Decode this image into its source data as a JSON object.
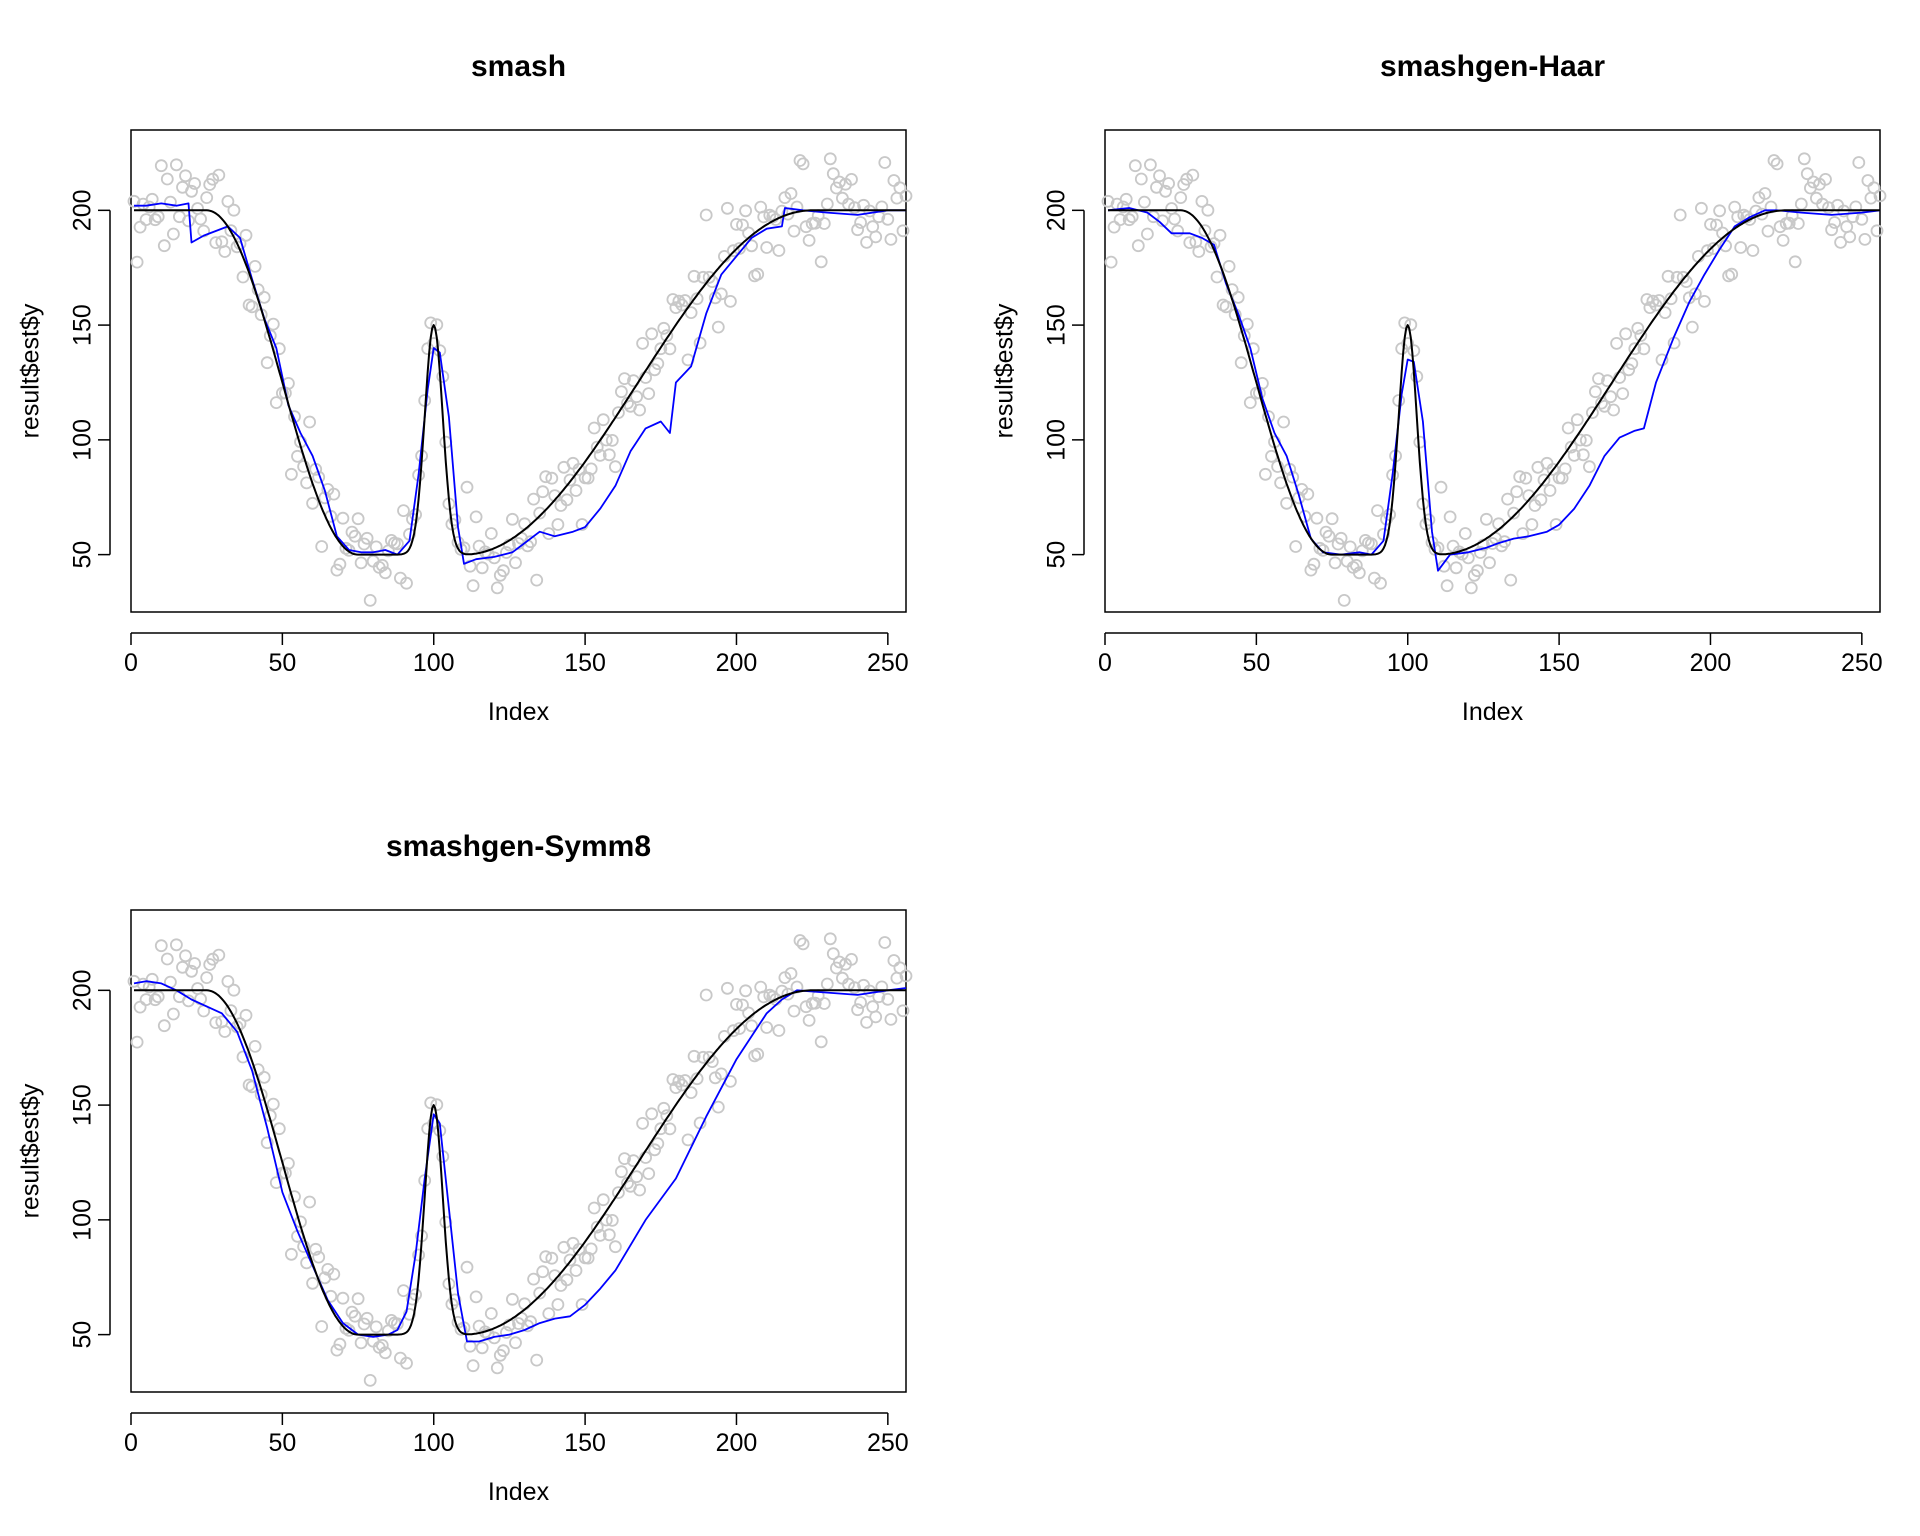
{
  "colors": {
    "background": "#ffffff",
    "observed": "#c8c8c8",
    "estimate": "#0000ff",
    "truth": "#000000",
    "axis": "#000000"
  },
  "chart_data": [
    {
      "type": "scatter",
      "title": "smash",
      "xlabel": "Index",
      "ylabel": "result$est$y",
      "xlim": [
        0,
        256
      ],
      "ylim": [
        25,
        235
      ],
      "xticks": [
        0,
        50,
        100,
        150,
        200,
        250
      ],
      "yticks": [
        50,
        100,
        150,
        200
      ],
      "grid": false,
      "estimate_points": [
        [
          1,
          202
        ],
        [
          5,
          202
        ],
        [
          10,
          203
        ],
        [
          15,
          202
        ],
        [
          19,
          203
        ],
        [
          20,
          186
        ],
        [
          24,
          189
        ],
        [
          28,
          191
        ],
        [
          32,
          193
        ],
        [
          36,
          188
        ],
        [
          40,
          170
        ],
        [
          44,
          153
        ],
        [
          48,
          140
        ],
        [
          52,
          115
        ],
        [
          56,
          103
        ],
        [
          60,
          93
        ],
        [
          64,
          78
        ],
        [
          68,
          58
        ],
        [
          72,
          52
        ],
        [
          76,
          51
        ],
        [
          80,
          51
        ],
        [
          84,
          52
        ],
        [
          88,
          50
        ],
        [
          92,
          56
        ],
        [
          95,
          85
        ],
        [
          98,
          122
        ],
        [
          100,
          140
        ],
        [
          102,
          138
        ],
        [
          105,
          110
        ],
        [
          108,
          62
        ],
        [
          110,
          46
        ],
        [
          114,
          48
        ],
        [
          120,
          49
        ],
        [
          126,
          51
        ],
        [
          130,
          55
        ],
        [
          135,
          60
        ],
        [
          140,
          58
        ],
        [
          146,
          60
        ],
        [
          150,
          62
        ],
        [
          155,
          70
        ],
        [
          160,
          80
        ],
        [
          165,
          95
        ],
        [
          170,
          105
        ],
        [
          175,
          108
        ],
        [
          178,
          103
        ],
        [
          180,
          125
        ],
        [
          185,
          132
        ],
        [
          190,
          155
        ],
        [
          195,
          172
        ],
        [
          200,
          180
        ],
        [
          205,
          188
        ],
        [
          210,
          192
        ],
        [
          215,
          193
        ],
        [
          216,
          201
        ],
        [
          222,
          200
        ],
        [
          230,
          199
        ],
        [
          240,
          198
        ],
        [
          250,
          200
        ],
        [
          256,
          200
        ]
      ]
    },
    {
      "type": "scatter",
      "title": "smashgen-Haar",
      "xlabel": "Index",
      "ylabel": "result$est$y",
      "xlim": [
        0,
        256
      ],
      "ylim": [
        25,
        235
      ],
      "xticks": [
        0,
        50,
        100,
        150,
        200,
        250
      ],
      "yticks": [
        50,
        100,
        150,
        200
      ],
      "grid": false,
      "estimate_points": [
        [
          1,
          200
        ],
        [
          8,
          201
        ],
        [
          14,
          199
        ],
        [
          18,
          195
        ],
        [
          22,
          190
        ],
        [
          28,
          190
        ],
        [
          32,
          188
        ],
        [
          36,
          185
        ],
        [
          40,
          168
        ],
        [
          44,
          155
        ],
        [
          48,
          140
        ],
        [
          52,
          118
        ],
        [
          56,
          103
        ],
        [
          60,
          93
        ],
        [
          64,
          76
        ],
        [
          68,
          57
        ],
        [
          72,
          51
        ],
        [
          78,
          50
        ],
        [
          84,
          51
        ],
        [
          88,
          50
        ],
        [
          92,
          56
        ],
        [
          95,
          85
        ],
        [
          98,
          120
        ],
        [
          100,
          135
        ],
        [
          102,
          134
        ],
        [
          105,
          108
        ],
        [
          108,
          60
        ],
        [
          110,
          43
        ],
        [
          114,
          50
        ],
        [
          120,
          51
        ],
        [
          126,
          53
        ],
        [
          130,
          55
        ],
        [
          135,
          57
        ],
        [
          140,
          58
        ],
        [
          146,
          60
        ],
        [
          150,
          63
        ],
        [
          155,
          70
        ],
        [
          160,
          80
        ],
        [
          165,
          93
        ],
        [
          170,
          101
        ],
        [
          175,
          104
        ],
        [
          178,
          105
        ],
        [
          182,
          125
        ],
        [
          188,
          145
        ],
        [
          193,
          160
        ],
        [
          198,
          172
        ],
        [
          203,
          183
        ],
        [
          208,
          193
        ],
        [
          213,
          197
        ],
        [
          218,
          200
        ],
        [
          222,
          200
        ],
        [
          230,
          199
        ],
        [
          240,
          198
        ],
        [
          250,
          199
        ],
        [
          256,
          200
        ]
      ]
    },
    {
      "type": "scatter",
      "title": "smashgen-Symm8",
      "xlabel": "Index",
      "ylabel": "result$est$y",
      "xlim": [
        0,
        256
      ],
      "ylim": [
        25,
        235
      ],
      "xticks": [
        0,
        50,
        100,
        150,
        200,
        250
      ],
      "yticks": [
        50,
        100,
        150,
        200
      ],
      "grid": false,
      "estimate_points": [
        [
          1,
          203
        ],
        [
          5,
          204
        ],
        [
          10,
          203
        ],
        [
          15,
          200
        ],
        [
          20,
          196
        ],
        [
          25,
          193
        ],
        [
          30,
          190
        ],
        [
          35,
          182
        ],
        [
          40,
          165
        ],
        [
          45,
          140
        ],
        [
          50,
          112
        ],
        [
          55,
          95
        ],
        [
          60,
          80
        ],
        [
          65,
          65
        ],
        [
          70,
          55
        ],
        [
          75,
          50
        ],
        [
          80,
          49
        ],
        [
          85,
          50
        ],
        [
          88,
          52
        ],
        [
          91,
          60
        ],
        [
          94,
          85
        ],
        [
          97,
          118
        ],
        [
          100,
          146
        ],
        [
          102,
          142
        ],
        [
          105,
          105
        ],
        [
          108,
          68
        ],
        [
          111,
          47
        ],
        [
          115,
          47
        ],
        [
          120,
          49
        ],
        [
          125,
          50
        ],
        [
          130,
          52
        ],
        [
          135,
          55
        ],
        [
          140,
          57
        ],
        [
          145,
          58
        ],
        [
          150,
          63
        ],
        [
          155,
          70
        ],
        [
          160,
          78
        ],
        [
          170,
          100
        ],
        [
          180,
          118
        ],
        [
          190,
          145
        ],
        [
          200,
          170
        ],
        [
          210,
          190
        ],
        [
          215,
          196
        ],
        [
          220,
          200
        ],
        [
          230,
          199
        ],
        [
          240,
          198
        ],
        [
          250,
          200
        ],
        [
          256,
          201
        ]
      ]
    }
  ]
}
